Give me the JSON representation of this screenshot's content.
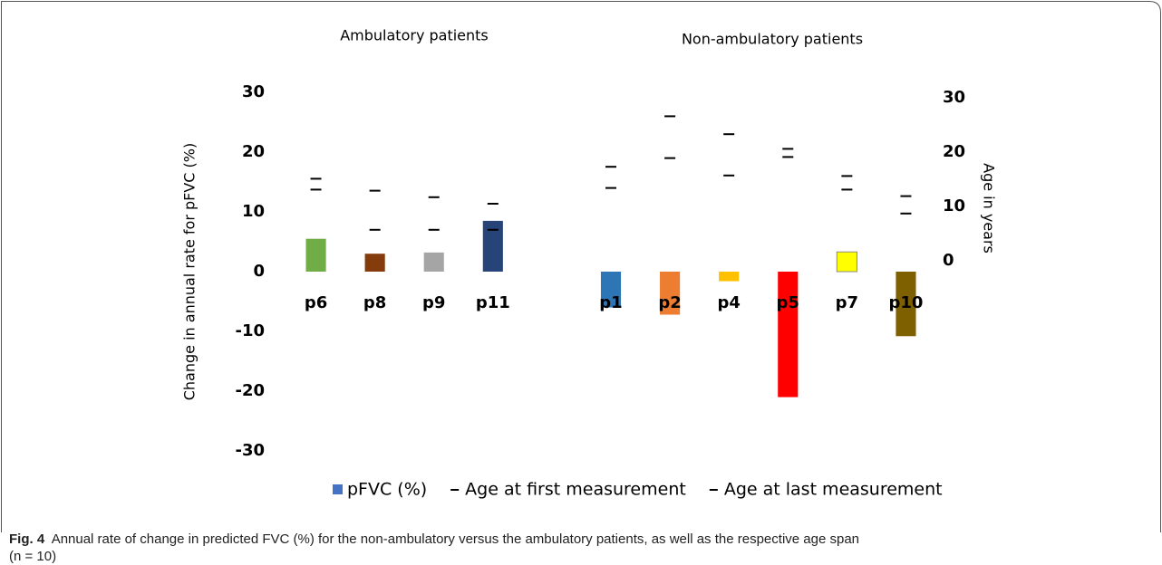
{
  "chart_data": {
    "type": "bar",
    "annotations": [
      "Ambulatory patients",
      "Non-ambulatory patients"
    ],
    "y_label": "Change in annual rate for pFVC (%)",
    "y2_label": "Age in years",
    "categories": [
      "p6",
      "p8",
      "p9",
      "p11",
      null,
      "p1",
      "p2",
      "p4",
      "p5",
      "p7",
      "p10"
    ],
    "series": [
      {
        "name": "pFVC (%)",
        "color": "#4472c4",
        "colors": [
          "#70ad47",
          "#843c0c",
          "#a5a5a5",
          "#264478",
          null,
          "#2e75b6",
          "#ed7d31",
          "#ffc000",
          "#ff0000",
          "#ffff00",
          "#7f6000"
        ],
        "values": [
          5.5,
          3,
          3.2,
          8.5,
          null,
          -6,
          -7.2,
          -1.6,
          -21,
          3.3,
          -10.8
        ]
      },
      {
        "name": "Age at first measurement",
        "color": "#000000",
        "axis": "y2",
        "values": [
          13.1,
          5.7,
          5.7,
          5.7,
          null,
          13.4,
          18.9,
          15.7,
          19.1,
          13.1,
          8.7
        ]
      },
      {
        "name": "Age at last measurement",
        "color": "#000000",
        "axis": "y2",
        "values": [
          15.1,
          12.9,
          11.7,
          10.5,
          null,
          17.3,
          26.6,
          23.3,
          20.6,
          15.6,
          11.9
        ]
      }
    ],
    "ylim": [
      -30,
      30
    ],
    "yticks": [
      -30,
      -20,
      -10,
      0,
      10,
      20,
      30
    ],
    "y2lim": [
      -35,
      31
    ],
    "y2ticks": [
      0,
      10,
      20,
      30
    ],
    "grid": false,
    "legend": "bottom"
  },
  "caption": {
    "label": "Fig. 4",
    "text": "Annual rate of change in predicted FVC (%) for the non-ambulatory versus the ambulatory patients, as well as the respective age span",
    "note": "(n = 10)"
  }
}
